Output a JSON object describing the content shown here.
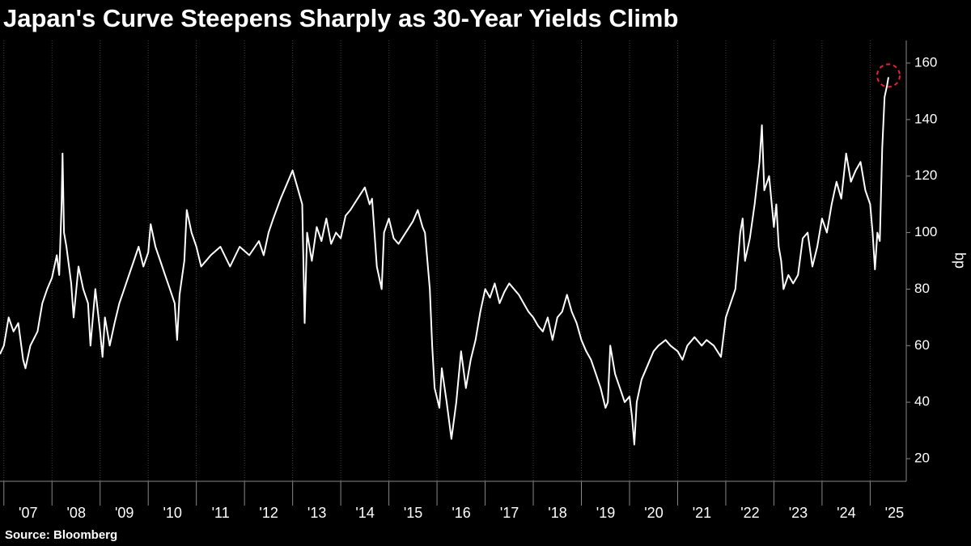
{
  "chart_data": {
    "type": "line",
    "title": "Japan's Curve Steepens Sharply as 30-Year Yields Climb",
    "ylabel": "bp",
    "source": "Source: Bloomberg",
    "series": [
      {
        "color": "#ffffff",
        "x": [
          2006.92,
          2007.0,
          2007.1,
          2007.2,
          2007.3,
          2007.4,
          2007.45,
          2007.55,
          2007.7,
          2007.8,
          2007.9,
          2008.0,
          2008.05,
          2008.1,
          2008.15,
          2008.2,
          2008.22,
          2008.25,
          2008.3,
          2008.4,
          2008.45,
          2008.55,
          2008.65,
          2008.75,
          2008.8,
          2008.9,
          2009.0,
          2009.05,
          2009.1,
          2009.2,
          2009.3,
          2009.4,
          2009.5,
          2009.6,
          2009.7,
          2009.8,
          2009.9,
          2010.0,
          2010.05,
          2010.15,
          2010.25,
          2010.35,
          2010.45,
          2010.55,
          2010.6,
          2010.65,
          2010.75,
          2010.8,
          2010.9,
          2011.0,
          2011.1,
          2011.3,
          2011.5,
          2011.7,
          2011.9,
          2012.1,
          2012.3,
          2012.4,
          2012.5,
          2012.6,
          2012.75,
          2012.9,
          2013.0,
          2013.1,
          2013.2,
          2013.25,
          2013.3,
          2013.4,
          2013.5,
          2013.6,
          2013.7,
          2013.8,
          2013.9,
          2014.0,
          2014.1,
          2014.2,
          2014.35,
          2014.5,
          2014.6,
          2014.65,
          2014.7,
          2014.75,
          2014.85,
          2014.9,
          2015.0,
          2015.1,
          2015.2,
          2015.35,
          2015.5,
          2015.6,
          2015.7,
          2015.75,
          2015.8,
          2015.85,
          2015.9,
          2015.95,
          2016.05,
          2016.1,
          2016.2,
          2016.3,
          2016.4,
          2016.5,
          2016.6,
          2016.7,
          2016.8,
          2016.9,
          2017.0,
          2017.1,
          2017.2,
          2017.3,
          2017.4,
          2017.5,
          2017.6,
          2017.7,
          2017.8,
          2017.9,
          2018.0,
          2018.1,
          2018.2,
          2018.3,
          2018.4,
          2018.5,
          2018.6,
          2018.7,
          2018.8,
          2018.9,
          2019.0,
          2019.1,
          2019.2,
          2019.3,
          2019.4,
          2019.5,
          2019.55,
          2019.6,
          2019.7,
          2019.8,
          2019.9,
          2020.0,
          2020.05,
          2020.1,
          2020.15,
          2020.25,
          2020.35,
          2020.5,
          2020.6,
          2020.75,
          2020.85,
          2021.0,
          2021.1,
          2021.2,
          2021.35,
          2021.5,
          2021.6,
          2021.75,
          2021.9,
          2022.0,
          2022.1,
          2022.2,
          2022.3,
          2022.35,
          2022.4,
          2022.5,
          2022.6,
          2022.7,
          2022.75,
          2022.8,
          2022.9,
          2023.0,
          2023.05,
          2023.1,
          2023.15,
          2023.2,
          2023.3,
          2023.4,
          2023.5,
          2023.6,
          2023.7,
          2023.8,
          2023.9,
          2024.0,
          2024.1,
          2024.2,
          2024.3,
          2024.4,
          2024.5,
          2024.6,
          2024.7,
          2024.8,
          2024.9,
          2025.0,
          2025.05,
          2025.1,
          2025.15,
          2025.2,
          2025.25,
          2025.3,
          2025.35,
          2025.38
        ],
        "values": [
          57,
          60,
          70,
          65,
          68,
          55,
          52,
          60,
          65,
          75,
          80,
          84,
          88,
          92,
          85,
          110,
          128,
          100,
          95,
          82,
          70,
          88,
          80,
          75,
          60,
          80,
          65,
          56,
          70,
          60,
          68,
          75,
          80,
          85,
          90,
          95,
          88,
          93,
          103,
          95,
          90,
          85,
          80,
          75,
          62,
          78,
          90,
          108,
          100,
          95,
          88,
          92,
          95,
          88,
          95,
          92,
          97,
          92,
          100,
          105,
          112,
          118,
          122,
          116,
          110,
          68,
          100,
          90,
          102,
          97,
          105,
          96,
          100,
          98,
          106,
          108,
          112,
          116,
          110,
          112,
          100,
          88,
          80,
          100,
          105,
          98,
          96,
          100,
          104,
          108,
          102,
          100,
          90,
          80,
          60,
          45,
          38,
          52,
          40,
          27,
          40,
          58,
          45,
          55,
          62,
          72,
          80,
          77,
          82,
          75,
          79,
          82,
          80,
          78,
          75,
          72,
          70,
          67,
          65,
          70,
          62,
          70,
          72,
          78,
          72,
          68,
          62,
          58,
          55,
          50,
          45,
          38,
          40,
          60,
          50,
          45,
          40,
          42,
          35,
          25,
          40,
          48,
          52,
          58,
          60,
          62,
          60,
          58,
          55,
          60,
          63,
          60,
          62,
          60,
          56,
          70,
          75,
          80,
          100,
          105,
          90,
          98,
          110,
          125,
          138,
          115,
          120,
          102,
          110,
          95,
          90,
          80,
          85,
          82,
          85,
          98,
          100,
          88,
          95,
          105,
          100,
          110,
          118,
          112,
          128,
          118,
          122,
          125,
          115,
          110,
          100,
          87,
          100,
          97,
          130,
          148,
          152,
          155
        ]
      }
    ],
    "xlim": [
      2006.92,
      2025.75
    ],
    "xticks": [
      {
        "value": 2007,
        "label": "'07"
      },
      {
        "value": 2008,
        "label": "'08"
      },
      {
        "value": 2009,
        "label": "'09"
      },
      {
        "value": 2010,
        "label": "'10"
      },
      {
        "value": 2011,
        "label": "'11"
      },
      {
        "value": 2012,
        "label": "'12"
      },
      {
        "value": 2013,
        "label": "'13"
      },
      {
        "value": 2014,
        "label": "'14"
      },
      {
        "value": 2015,
        "label": "'15"
      },
      {
        "value": 2016,
        "label": "'16"
      },
      {
        "value": 2017,
        "label": "'17"
      },
      {
        "value": 2018,
        "label": "'18"
      },
      {
        "value": 2019,
        "label": "'19"
      },
      {
        "value": 2020,
        "label": "'20"
      },
      {
        "value": 2021,
        "label": "'21"
      },
      {
        "value": 2022,
        "label": "'22"
      },
      {
        "value": 2023,
        "label": "'23"
      },
      {
        "value": 2024,
        "label": "'24"
      },
      {
        "value": 2025,
        "label": "'25"
      }
    ],
    "ylim": [
      12,
      168
    ],
    "yticks": [
      20,
      40,
      60,
      80,
      100,
      120,
      140,
      160
    ],
    "grid": true
  }
}
